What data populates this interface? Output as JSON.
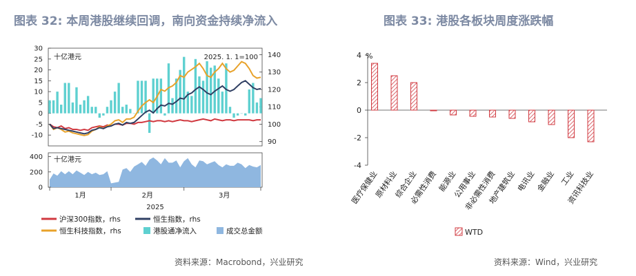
{
  "titles": {
    "left": "图表 32: 本周港股继续回调，南向资金持续净流入",
    "right": "图表 33: 港股各板块周度涨跌幅"
  },
  "sources": {
    "left": "资料来源：Macrobond，兴业研究",
    "right": "资料来源：Wind，兴业研究"
  },
  "colors": {
    "hs300": "#d0383f",
    "hsi": "#2f3f63",
    "hstech": "#e8a22a",
    "flow": "#5ed0d0",
    "turnover": "#8fb7e0",
    "hatch": "#d0383f"
  },
  "chart_data": [
    {
      "type": "line",
      "upper_unit": "十亿港元",
      "base_note": "2025. 1. 1=100",
      "lower_unit": "十亿港元",
      "x_ticks": [
        "1月",
        "2月",
        "3月"
      ],
      "x_year": "2025",
      "ylim_left": [
        -15,
        30
      ],
      "yticks_left": [
        -10,
        -5,
        0,
        5,
        10,
        15,
        20,
        25,
        30
      ],
      "ylim_right": [
        87.5,
        143.75
      ],
      "yticks_right": [
        90,
        100,
        110,
        120,
        130,
        140
      ],
      "ylim_lower": [
        0,
        450
      ],
      "yticks_lower": [
        0,
        200,
        400
      ],
      "legend": {
        "hs300": "沪深300指数，rhs",
        "hsi": "恒生指数，rhs",
        "hstech": "恒生科技指数，rhs",
        "flow": "港股通净流入",
        "turnover": "成交总金额"
      },
      "hs300": [
        100,
        98.5,
        98,
        99,
        97.5,
        98,
        97,
        97,
        96.5,
        97,
        96.5,
        98,
        98.5,
        99,
        98.5,
        99.5,
        99,
        100,
        100,
        99.5,
        100.5,
        100.5,
        100,
        101,
        101,
        101.5,
        102,
        101.5,
        102,
        102,
        101.5,
        102,
        101.5,
        102,
        102.5,
        102,
        102,
        101.5,
        102,
        102.5,
        103,
        102.5,
        102,
        103,
        102.5,
        102,
        102.5,
        102.5,
        102,
        102.5,
        102.5,
        102.5,
        102.5,
        102,
        102.5,
        102.5
      ],
      "hsi": [
        100,
        97.5,
        98,
        97.5,
        97,
        96.5,
        96,
        95.5,
        95,
        94.5,
        95,
        96.5,
        97,
        98,
        97.5,
        98.5,
        99,
        100,
        100.5,
        99.5,
        101,
        100.5,
        101,
        103,
        105,
        107,
        108,
        106.5,
        109,
        111,
        110.5,
        112,
        111.5,
        113,
        115,
        114.5,
        117,
        118,
        120,
        121.5,
        120,
        118,
        117,
        119,
        120.5,
        122,
        120,
        119,
        120,
        122,
        124,
        125,
        123,
        121,
        120,
        120.5
      ],
      "hstech": [
        100,
        97,
        98,
        97,
        95.5,
        96,
        95,
        94.5,
        94,
        93.5,
        94,
        96,
        97,
        98.5,
        97.5,
        99,
        100,
        102,
        102.5,
        101,
        103,
        103,
        104,
        107.5,
        110.5,
        112.5,
        114,
        112.5,
        116,
        120,
        119,
        121,
        122,
        124,
        128,
        127,
        130,
        131.5,
        133,
        135,
        132,
        128,
        127,
        130,
        132,
        135,
        132,
        130,
        131,
        133.5,
        136,
        135,
        132,
        128,
        126.5,
        127
      ],
      "flow": [
        6,
        6,
        10,
        4,
        14,
        14,
        5,
        12,
        4,
        6,
        8,
        3,
        3,
        -2,
        -1,
        3,
        6,
        10,
        14,
        3,
        4,
        2,
        0,
        15,
        15,
        15,
        -9,
        16,
        16,
        16,
        -1,
        23,
        7,
        16,
        20,
        26,
        10,
        8,
        25,
        17,
        15,
        24,
        21,
        22,
        16,
        10,
        23,
        3,
        -2,
        -1,
        0,
        -1,
        11,
        14,
        5,
        7
      ],
      "turnover": [
        100,
        180,
        150,
        210,
        170,
        210,
        170,
        220,
        190,
        160,
        200,
        170,
        190,
        160,
        170,
        210,
        50,
        60,
        70,
        230,
        250,
        200,
        270,
        300,
        330,
        280,
        360,
        390,
        350,
        300,
        380,
        320,
        320,
        350,
        260,
        340,
        380,
        300,
        260,
        350,
        340,
        300,
        320,
        340,
        290,
        260,
        300,
        280,
        280,
        320,
        300,
        250,
        290,
        270,
        260,
        290
      ]
    },
    {
      "type": "bar",
      "unit": "%",
      "categories": [
        "医疗保健业",
        "原材料业",
        "综合企业",
        "必需性消费",
        "能源业",
        "公用事业",
        "非必需性消费",
        "地产建筑业",
        "电讯业",
        "金融业",
        "工业",
        "资讯科技业"
      ],
      "series": [
        {
          "name": "WTD",
          "values": [
            3.4,
            2.5,
            2.0,
            -0.05,
            -0.35,
            -0.45,
            -0.5,
            -0.6,
            -0.85,
            -1.05,
            -2.0,
            -2.3
          ]
        }
      ],
      "ylim": [
        -4,
        4
      ],
      "yticks": [
        -4,
        -2,
        0,
        2,
        4
      ],
      "legend_position": "bottom"
    }
  ]
}
